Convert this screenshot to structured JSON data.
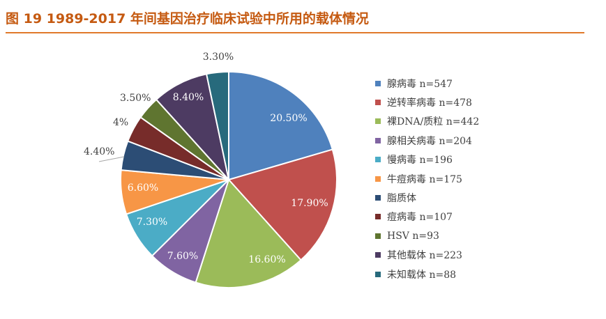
{
  "title": "图 19 1989-2017 年间基因治疗临床试验中所用的载体情况",
  "chart_data": {
    "type": "pie",
    "slices": [
      {
        "label": "20.50%",
        "value": 20.5,
        "color": "#4f81bd",
        "legend": "腺病毒 n=547"
      },
      {
        "label": "17.90%",
        "value": 17.9,
        "color": "#c0504d",
        "legend": "逆转率病毒 n=478"
      },
      {
        "label": "16.60%",
        "value": 16.6,
        "color": "#9bbb59",
        "legend": "裸DNA/质粒 n=442"
      },
      {
        "label": "7.60%",
        "value": 7.6,
        "color": "#8064a2",
        "legend": "腺相关病毒 n=204"
      },
      {
        "label": "7.30%",
        "value": 7.3,
        "color": "#4bacc6",
        "legend": "慢病毒 n=196"
      },
      {
        "label": "6.60%",
        "value": 6.6,
        "color": "#f79646",
        "legend": "牛痘病毒 n=175"
      },
      {
        "label": "4.40%",
        "value": 4.4,
        "color": "#2c4d75",
        "legend": "脂质体"
      },
      {
        "label": "4%",
        "value": 4.0,
        "color": "#772c2a",
        "legend": "痘病毒 n=107"
      },
      {
        "label": "3.50%",
        "value": 3.5,
        "color": "#5f7530",
        "legend": "HSV n=93"
      },
      {
        "label": "8.40%",
        "value": 8.4,
        "color": "#4d3b62",
        "legend": "其他载体 n=223"
      },
      {
        "label": "3.30%",
        "value": 3.3,
        "color": "#276a7c",
        "legend": "未知载体 n=88"
      }
    ]
  }
}
